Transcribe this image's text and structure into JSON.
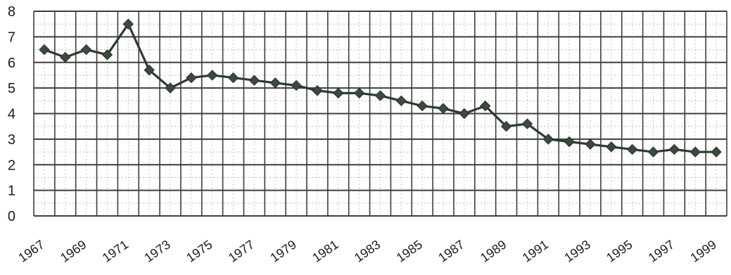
{
  "chart_data": {
    "type": "line",
    "title": "",
    "xlabel": "",
    "ylabel": "",
    "x": [
      1967,
      1968,
      1969,
      1970,
      1971,
      1972,
      1973,
      1974,
      1975,
      1976,
      1977,
      1978,
      1979,
      1980,
      1981,
      1982,
      1983,
      1984,
      1985,
      1986,
      1987,
      1988,
      1989,
      1990,
      1991,
      1992,
      1993,
      1994,
      1995,
      1996,
      1997,
      1998,
      1999
    ],
    "series": [
      {
        "values": [
          6.5,
          6.2,
          6.5,
          6.3,
          7.5,
          5.7,
          5.0,
          5.4,
          5.5,
          5.4,
          5.3,
          5.2,
          5.1,
          4.9,
          4.8,
          4.8,
          4.7,
          4.5,
          4.3,
          4.2,
          4.0,
          4.3,
          3.5,
          3.6,
          3.0,
          2.9,
          2.8,
          2.7,
          2.6,
          2.5,
          2.6,
          2.5,
          2.5
        ],
        "color": "#2f3a30",
        "marker": "diamond"
      }
    ],
    "xticks": [
      "1967",
      "1969",
      "1971",
      "1973",
      "1975",
      "1977",
      "1979",
      "1981",
      "1983",
      "1985",
      "1987",
      "1989",
      "1991",
      "1993",
      "1995",
      "1997",
      "1999"
    ],
    "yticks": [
      "0",
      "1",
      "2",
      "3",
      "4",
      "5",
      "6",
      "7",
      "8"
    ],
    "ylim": [
      0,
      8
    ],
    "xlim": [
      1966.5,
      1999.5
    ],
    "grid": true,
    "legend": "none",
    "colors": {
      "grid": "#3c3f3c",
      "line": "#2f3a30",
      "marker": "#3b4a3e",
      "background": "#ffffff"
    }
  }
}
